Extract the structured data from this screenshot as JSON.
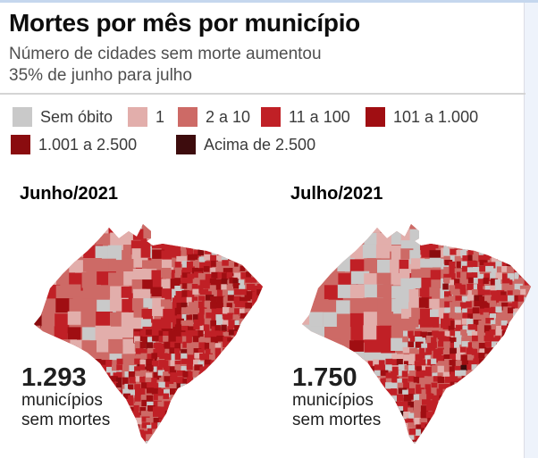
{
  "header": {
    "title": "Mortes por mês por município",
    "subtitle_line1": "Número de cidades sem morte aumentou",
    "subtitle_line2": "35% de junho para julho"
  },
  "legend": {
    "items": [
      {
        "label": "Sem óbito",
        "color": "#c9c9c9"
      },
      {
        "label": "1",
        "color": "#e2aeab"
      },
      {
        "label": "2 a 10",
        "color": "#cd6a66"
      },
      {
        "label": "11 a 100",
        "color": "#c02026"
      },
      {
        "label": "101 a 1.000",
        "color": "#a00e12"
      },
      {
        "label": "1.001 a 2.500",
        "color": "#8a0c0f"
      },
      {
        "label": "Acima de 2.500",
        "color": "#3d0c0d"
      }
    ]
  },
  "maps": [
    {
      "title": "Junho/2021",
      "stat_value": "1.293",
      "stat_line1": "municípios",
      "stat_line2": "sem mortes"
    },
    {
      "title": "Julho/2021",
      "stat_value": "1.750",
      "stat_line1": "municípios",
      "stat_line2": "sem mortes"
    }
  ],
  "chart_data": {
    "type": "choropleth",
    "title": "Mortes por mês por município",
    "subtitle": "Número de cidades sem morte aumentou 35% de junho para julho",
    "geography": "Brazil, by municipality",
    "legend_buckets": [
      {
        "label": "Sem óbito",
        "color": "#c9c9c9"
      },
      {
        "label": "1",
        "color": "#e2aeab"
      },
      {
        "label": "2 a 10",
        "color": "#cd6a66"
      },
      {
        "label": "11 a 100",
        "color": "#c02026"
      },
      {
        "label": "101 a 1.000",
        "color": "#a00e12"
      },
      {
        "label": "1.001 a 2.500",
        "color": "#8a0c0f"
      },
      {
        "label": "Acima de 2.500",
        "color": "#3d0c0d"
      }
    ],
    "series": [
      {
        "name": "Junho/2021",
        "municipios_sem_mortes": 1293
      },
      {
        "name": "Julho/2021",
        "municipios_sem_mortes": 1750
      }
    ],
    "change_pct_jun_to_jul": 35,
    "legend_position": "top",
    "layout": "two maps side by side"
  }
}
